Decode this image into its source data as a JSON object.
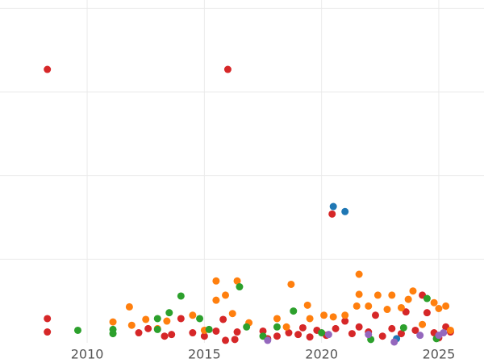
{
  "chart_data": {
    "type": "scatter",
    "xlim": [
      2006.28,
      2026.93
    ],
    "xticks": [
      2010,
      2015,
      2020,
      2025
    ],
    "ylim": [
      0,
      4.1
    ],
    "ygrid": [
      1,
      2,
      3,
      4
    ],
    "grid": true,
    "series": [
      {
        "color": "#d62728",
        "x": [
          2008.3,
          2016.0,
          2020.45,
          2008.3,
          2008.3,
          2012.2,
          2012.6,
          2013.3,
          2013.6,
          2014.0,
          2014.5,
          2015.0,
          2015.5,
          2015.8,
          2015.9,
          2016.3,
          2016.4,
          2017.5,
          2017.7,
          2018.1,
          2018.6,
          2019.0,
          2019.2,
          2019.5,
          2019.8,
          2020.2,
          2020.6,
          2021.0,
          2021.3,
          2021.6,
          2022.0,
          2022.3,
          2022.6,
          2023.0,
          2023.4,
          2023.6,
          2024.0,
          2024.3,
          2024.5,
          2024.8,
          2025.0,
          2025.3,
          2025.5
        ],
        "values": [
          3.27,
          3.27,
          1.54,
          0.29,
          0.13,
          0.12,
          0.17,
          0.08,
          0.1,
          0.29,
          0.12,
          0.08,
          0.14,
          0.28,
          0.03,
          0.04,
          0.13,
          0.14,
          0.05,
          0.08,
          0.12,
          0.1,
          0.18,
          0.07,
          0.15,
          0.09,
          0.17,
          0.26,
          0.11,
          0.19,
          0.13,
          0.33,
          0.08,
          0.17,
          0.11,
          0.37,
          0.15,
          0.57,
          0.36,
          0.12,
          0.06,
          0.19,
          0.13
        ]
      },
      {
        "color": "#ff7f0e",
        "x": [
          2011.1,
          2011.8,
          2011.9,
          2012.5,
          2013.0,
          2013.4,
          2014.5,
          2015.0,
          2015.5,
          2015.5,
          2015.9,
          2016.2,
          2016.4,
          2016.9,
          2018.1,
          2018.7,
          2018.5,
          2019.4,
          2019.5,
          2020.1,
          2020.5,
          2021.0,
          2021.5,
          2021.6,
          2021.6,
          2022.0,
          2022.4,
          2022.8,
          2023.0,
          2023.4,
          2023.7,
          2023.9,
          2024.3,
          2024.8,
          2025.0,
          2025.3,
          2025.5
        ],
        "values": [
          0.25,
          0.43,
          0.21,
          0.28,
          0.17,
          0.26,
          0.33,
          0.15,
          0.51,
          0.74,
          0.57,
          0.35,
          0.74,
          0.24,
          0.29,
          0.7,
          0.19,
          0.45,
          0.29,
          0.33,
          0.31,
          0.33,
          0.44,
          0.58,
          0.82,
          0.44,
          0.57,
          0.4,
          0.57,
          0.42,
          0.52,
          0.62,
          0.22,
          0.48,
          0.41,
          0.44,
          0.15
        ]
      },
      {
        "color": "#2ca02c",
        "x": [
          2009.6,
          2011.1,
          2011.1,
          2013.0,
          2013.0,
          2013.5,
          2014.0,
          2014.8,
          2015.2,
          2016.5,
          2016.8,
          2017.5,
          2018.1,
          2018.8,
          2020.0,
          2022.1,
          2023.5,
          2024.5,
          2024.9
        ],
        "values": [
          0.15,
          0.16,
          0.11,
          0.29,
          0.16,
          0.36,
          0.56,
          0.29,
          0.16,
          0.67,
          0.19,
          0.08,
          0.19,
          0.38,
          0.12,
          0.04,
          0.18,
          0.53,
          0.05
        ]
      },
      {
        "color": "#1f77b4",
        "x": [
          2020.5,
          2021.0,
          2023.2
        ],
        "values": [
          1.63,
          1.57,
          0.05
        ]
      },
      {
        "color": "#9467bd",
        "x": [
          2017.7,
          2020.3,
          2022.0,
          2023.1,
          2024.2,
          2025.0,
          2025.2
        ],
        "values": [
          0.03,
          0.1,
          0.1,
          0.01,
          0.09,
          0.09,
          0.12
        ]
      }
    ]
  }
}
